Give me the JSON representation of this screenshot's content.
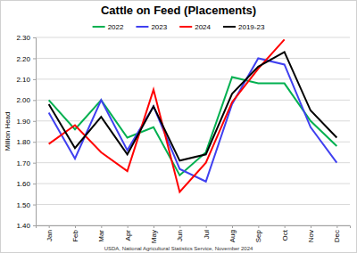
{
  "chart_data": {
    "type": "line",
    "title": "Cattle on Feed (Placements)",
    "y_label": "Million Head",
    "source": "USDA, National Agricultural Statistics Service, November 2024",
    "categories": [
      "Jan",
      "Feb",
      "Mar",
      "Apr",
      "May",
      "Jun",
      "Jul",
      "Aug",
      "Sep",
      "Oct",
      "Nov",
      "Dec"
    ],
    "series": [
      {
        "name": "2022",
        "color": "#00b050",
        "values": [
          2.0,
          1.86,
          2.0,
          1.82,
          1.87,
          1.64,
          1.75,
          2.11,
          2.08,
          2.08,
          1.9,
          1.78
        ]
      },
      {
        "name": "2023",
        "color": "#4040f0",
        "values": [
          1.94,
          1.72,
          2.0,
          1.76,
          1.97,
          1.67,
          1.61,
          1.98,
          2.2,
          2.17,
          1.87,
          1.7
        ]
      },
      {
        "name": "2024",
        "color": "#ff0000",
        "values": [
          1.79,
          1.88,
          1.75,
          1.66,
          2.05,
          1.56,
          1.7,
          1.99,
          2.15,
          2.29,
          null,
          null
        ]
      },
      {
        "name": "2019-23",
        "color": "#000000",
        "values": [
          1.98,
          1.77,
          1.92,
          1.74,
          1.97,
          1.71,
          1.74,
          2.03,
          2.16,
          2.23,
          1.95,
          1.82
        ]
      }
    ],
    "ylim": [
      1.4,
      2.3
    ],
    "yticks": [
      {
        "value": 1.4,
        "label": "1.40"
      },
      {
        "value": 1.5,
        "label": "1.50"
      },
      {
        "value": 1.6,
        "label": "1.60"
      },
      {
        "value": 1.7,
        "label": "1.70"
      },
      {
        "value": 1.8,
        "label": "1.80"
      },
      {
        "value": 1.9,
        "label": "1.90"
      },
      {
        "value": 2.0,
        "label": "2.00"
      },
      {
        "value": 2.1,
        "label": "2.10"
      },
      {
        "value": 2.2,
        "label": "2.20"
      },
      {
        "value": 2.3,
        "label": "2.30"
      }
    ],
    "grid": true,
    "legend": "top"
  }
}
